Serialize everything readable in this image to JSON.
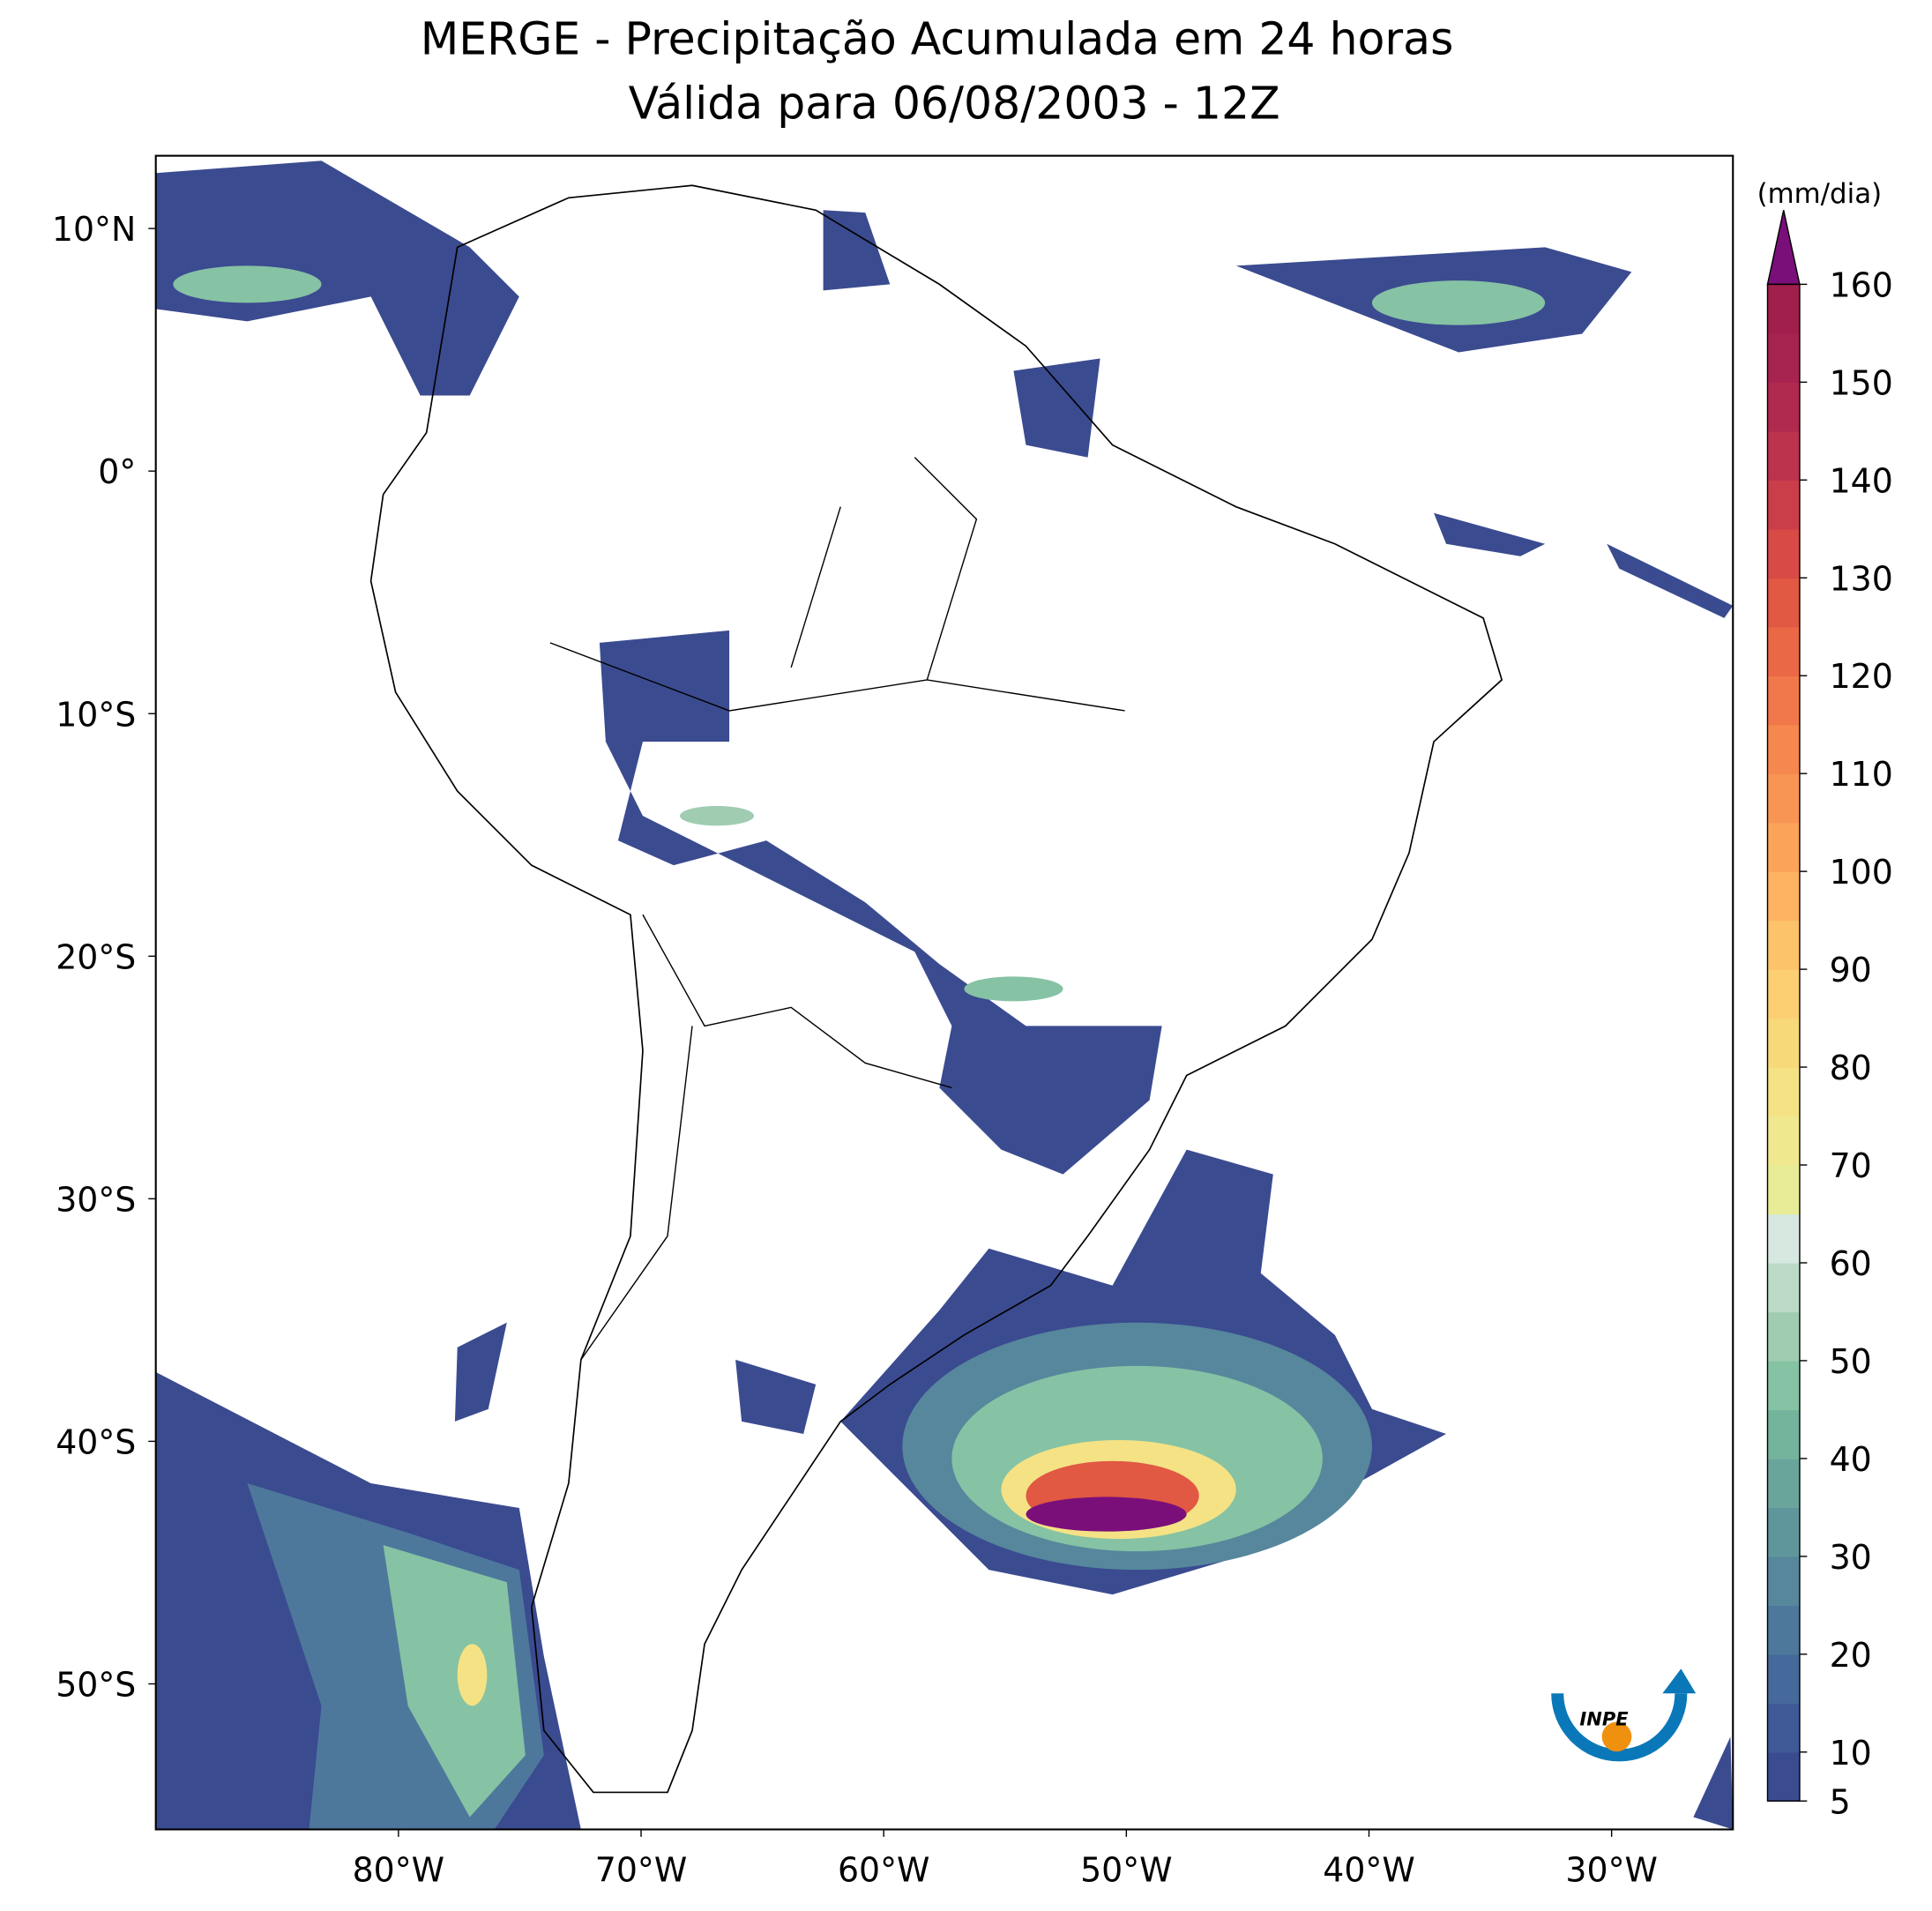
{
  "chart_data": {
    "type": "map",
    "title": "MERGE - Precipitação Acumulada em 24 horas",
    "subtitle": "Válida para 06/08/2003 - 12Z",
    "xlim": [
      -90,
      -25
    ],
    "ylim": [
      -56,
      13
    ],
    "xticks": [
      {
        "value": -80,
        "label": "80°W"
      },
      {
        "value": -70,
        "label": "70°W"
      },
      {
        "value": -60,
        "label": "60°W"
      },
      {
        "value": -50,
        "label": "50°W"
      },
      {
        "value": -40,
        "label": "40°W"
      },
      {
        "value": -30,
        "label": "30°W"
      }
    ],
    "yticks": [
      {
        "value": 10,
        "label": "10°N"
      },
      {
        "value": 0,
        "label": "0°"
      },
      {
        "value": -10,
        "label": "10°S"
      },
      {
        "value": -20,
        "label": "20°S"
      },
      {
        "value": -30,
        "label": "30°S"
      },
      {
        "value": -40,
        "label": "40°S"
      },
      {
        "value": -50,
        "label": "50°S"
      }
    ],
    "colorbar": {
      "label": "(mm/dia)",
      "lim": [
        5,
        160
      ],
      "ticks": [
        5,
        10,
        20,
        30,
        40,
        50,
        60,
        70,
        80,
        90,
        100,
        110,
        120,
        130,
        140,
        150,
        160
      ],
      "colors": [
        "#3b4b90",
        "#3f5a96",
        "#45699a",
        "#4d789c",
        "#56879c",
        "#5f969c",
        "#6aa59c",
        "#74b49c",
        "#86c2a4",
        "#a0cdb2",
        "#bcdac6",
        "#d6e8df",
        "#e8ec96",
        "#efe88f",
        "#f4e285",
        "#f8d97a",
        "#fbcf72",
        "#fdc36a",
        "#fdb362",
        "#fca35a",
        "#f99554",
        "#f6874f",
        "#f1784a",
        "#ea6846",
        "#e15843",
        "#d74a45",
        "#ca3e4a",
        "#bc334e",
        "#b02a4f",
        "#a72350",
        "#a11f4c"
      ],
      "extend_color": "#7a0f7a"
    },
    "logo": "INPE"
  }
}
